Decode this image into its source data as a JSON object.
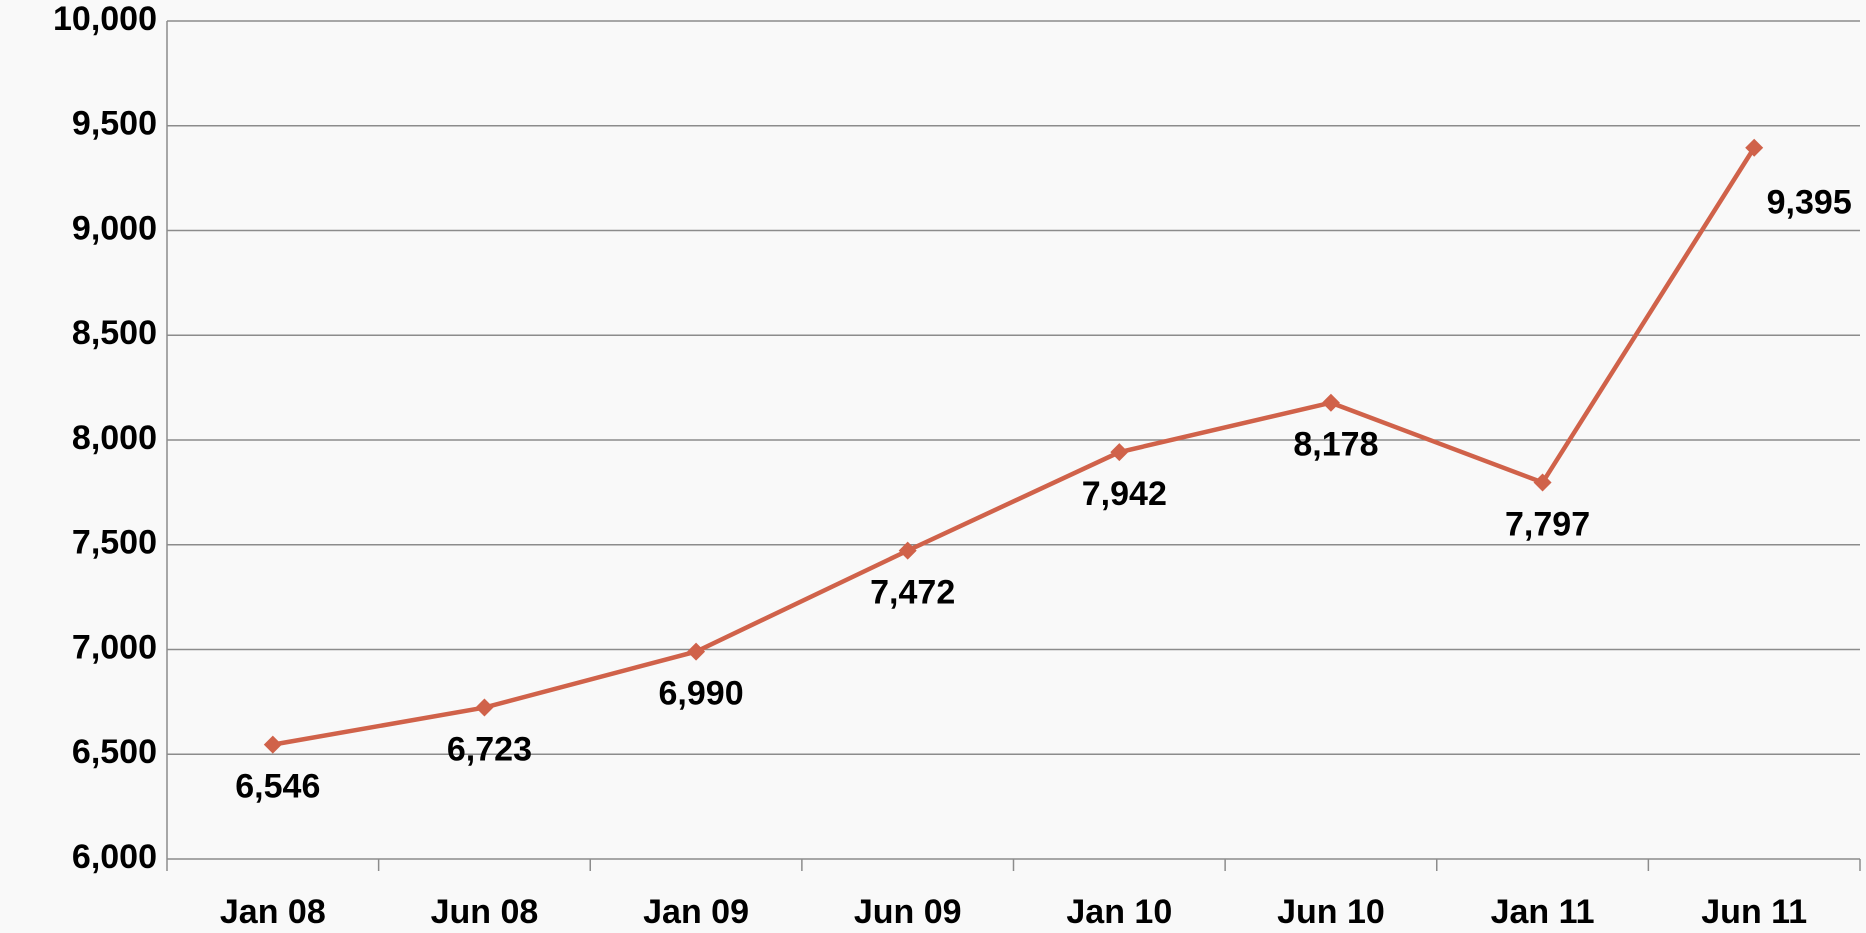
{
  "chart_data": {
    "type": "line",
    "categories": [
      "Jan 08",
      "Jun 08",
      "Jan 09",
      "Jun 09",
      "Jan 10",
      "Jun 10",
      "Jan 11",
      "Jun 11"
    ],
    "series": [
      {
        "color": "#d0624a",
        "values": [
          6546,
          6723,
          6990,
          7472,
          7942,
          8178,
          7797,
          9395
        ],
        "value_labels": [
          "6,546",
          "6,723",
          "6,990",
          "7,472",
          "7,942",
          "8,178",
          "7,797",
          "9,395"
        ]
      }
    ],
    "ylim": [
      6000,
      10000
    ],
    "yticks": [
      {
        "value": 6000,
        "label": "6,000"
      },
      {
        "value": 6500,
        "label": "6,500"
      },
      {
        "value": 7000,
        "label": "7,000"
      },
      {
        "value": 7500,
        "label": "7,500"
      },
      {
        "value": 8000,
        "label": "8,000"
      },
      {
        "value": 8500,
        "label": "8,500"
      },
      {
        "value": 9000,
        "label": "9,000"
      },
      {
        "value": 9500,
        "label": "9,500"
      },
      {
        "value": 10000,
        "label": "10,000"
      }
    ],
    "grid": true
  }
}
